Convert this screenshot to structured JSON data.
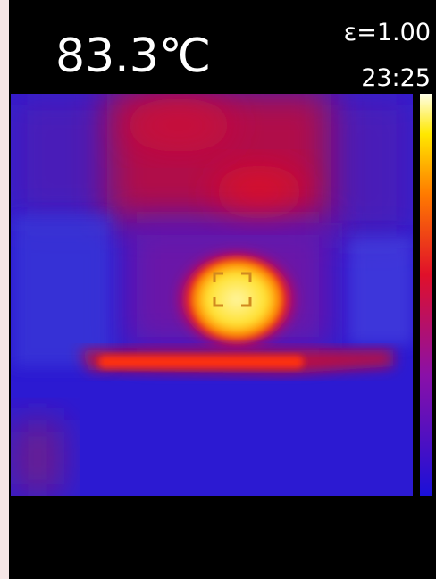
{
  "header": {
    "temperature": "83.3℃",
    "emissivity": "ε=1.00",
    "time": "23:25"
  }
}
